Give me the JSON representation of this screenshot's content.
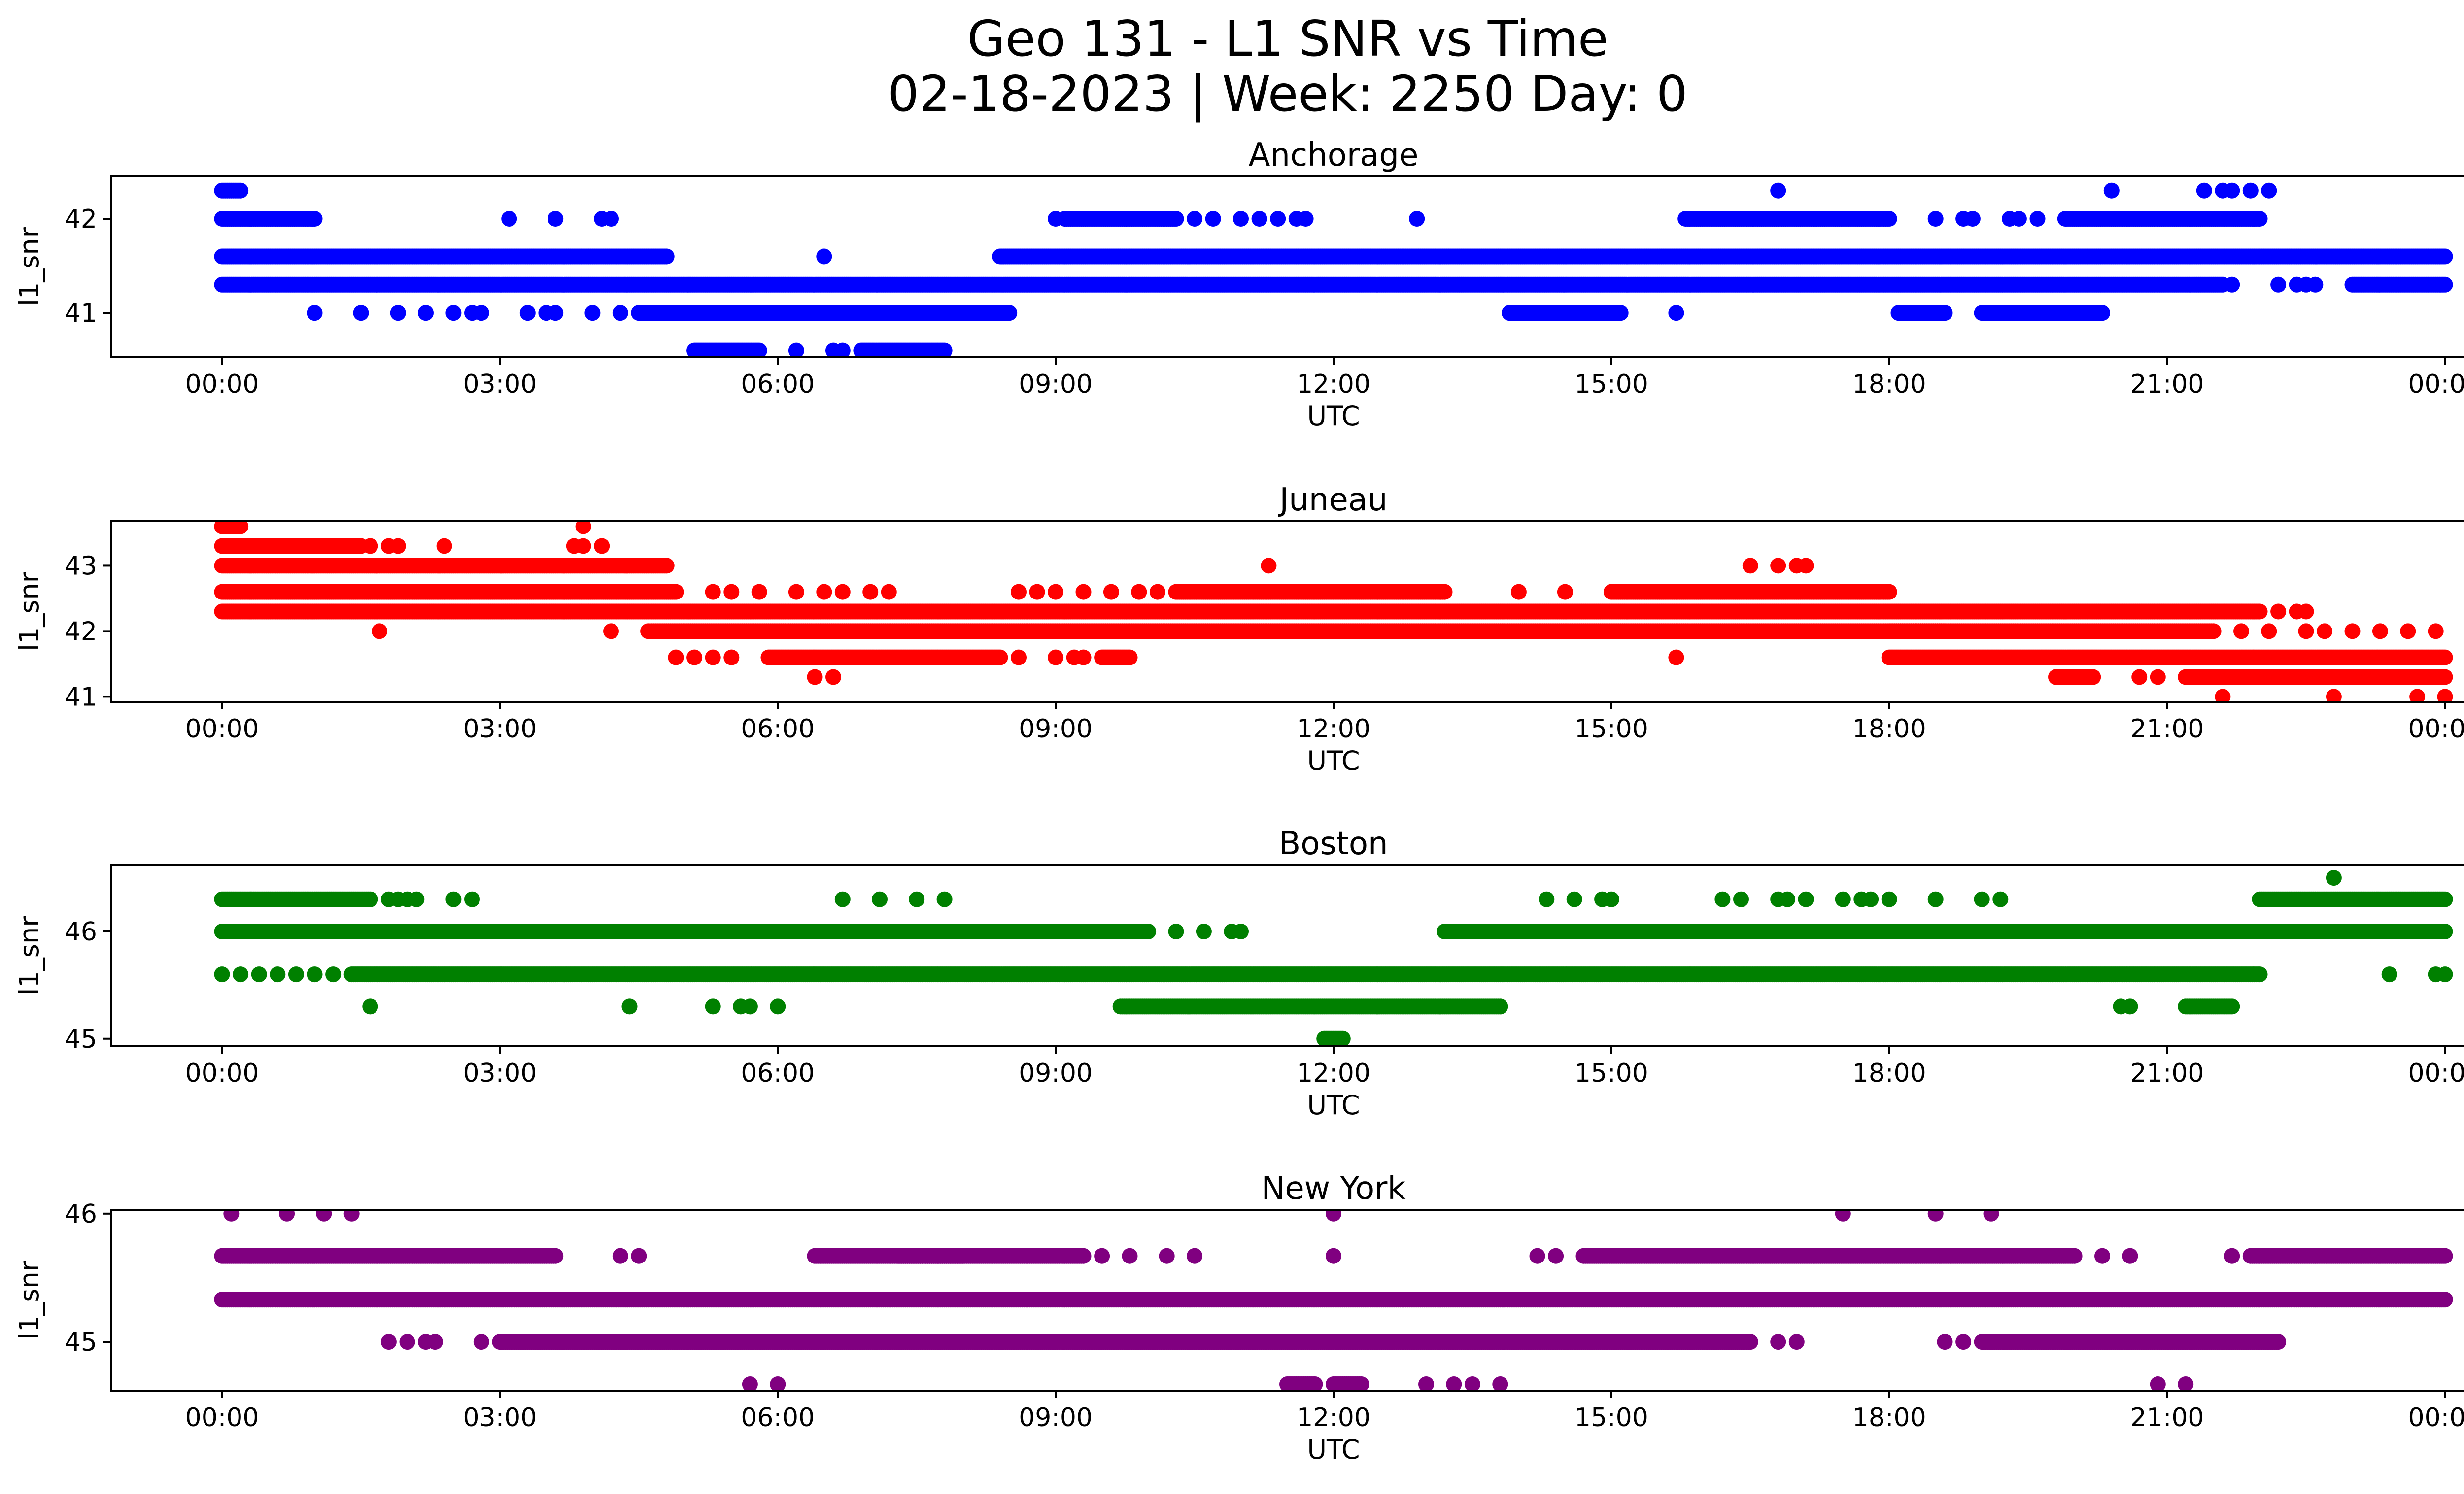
{
  "figure": {
    "title_line1": "Geo 131 - L1 SNR vs Time",
    "title_line2": "02-18-2023 | Week: 2250 Day: 0"
  },
  "chart_data": [
    {
      "type": "scatter",
      "title": "Anchorage",
      "xlabel": "UTC",
      "ylabel": "l1_snr",
      "color": "#0000ff",
      "x_ticks": [
        "00:00",
        "03:00",
        "06:00",
        "09:00",
        "12:00",
        "15:00",
        "18:00",
        "21:00",
        "00:00"
      ],
      "x_range_hours": [
        -1.2,
        25.2
      ],
      "y_ticks": [
        41,
        42
      ],
      "ylim": [
        40.53,
        42.45
      ],
      "series": [
        {
          "y": 42.3,
          "segments": [
            [
              0.0,
              0.2
            ]
          ],
          "points": [
            16.8,
            20.4,
            21.4,
            21.6,
            21.7,
            21.9,
            22.1
          ]
        },
        {
          "y": 42.0,
          "segments": [
            [
              0.0,
              1.0
            ],
            [
              9.1,
              10.3
            ],
            [
              15.8,
              18.0
            ],
            [
              19.9,
              22.0
            ]
          ],
          "points": [
            3.1,
            3.6,
            4.1,
            4.2,
            9.0,
            10.5,
            10.7,
            11.0,
            11.2,
            11.4,
            11.6,
            11.7,
            12.9,
            18.5,
            18.8,
            18.9,
            19.3,
            19.4,
            19.6
          ]
        },
        {
          "y": 41.6,
          "segments": [
            [
              0.0,
              4.8
            ],
            [
              8.4,
              24.0
            ]
          ],
          "points": [
            6.5
          ]
        },
        {
          "y": 41.3,
          "segments": [
            [
              0.0,
              21.6
            ],
            [
              23.0,
              24.0
            ]
          ],
          "points": [
            21.7,
            22.2,
            22.4,
            22.5,
            22.6
          ]
        },
        {
          "y": 41.0,
          "segments": [
            [
              4.5,
              8.5
            ],
            [
              13.9,
              15.1
            ],
            [
              18.1,
              18.6
            ],
            [
              19.0,
              20.3
            ]
          ],
          "points": [
            1.0,
            1.5,
            1.9,
            2.2,
            2.5,
            2.7,
            2.8,
            3.3,
            3.5,
            3.6,
            4.0,
            4.3,
            15.7
          ]
        },
        {
          "y": 40.6,
          "segments": [
            [
              5.1,
              5.8
            ],
            [
              6.9,
              7.8
            ]
          ],
          "points": [
            6.2,
            6.6,
            6.7
          ]
        }
      ]
    },
    {
      "type": "scatter",
      "title": "Juneau",
      "xlabel": "UTC",
      "ylabel": "l1_snr",
      "color": "#ff0000",
      "x_ticks": [
        "00:00",
        "03:00",
        "06:00",
        "09:00",
        "12:00",
        "15:00",
        "18:00",
        "21:00",
        "00:00"
      ],
      "x_range_hours": [
        -1.2,
        25.2
      ],
      "y_ticks": [
        41,
        42,
        43
      ],
      "ylim": [
        40.92,
        43.68
      ],
      "series": [
        {
          "y": 43.6,
          "segments": [
            [
              0.0,
              0.2
            ]
          ],
          "points": [
            3.9
          ]
        },
        {
          "y": 43.3,
          "segments": [
            [
              0.0,
              1.5
            ]
          ],
          "points": [
            1.6,
            1.8,
            1.9,
            2.4,
            3.8,
            3.9,
            4.1
          ]
        },
        {
          "y": 43.0,
          "segments": [
            [
              0.0,
              4.8
            ]
          ],
          "points": [
            11.3,
            16.5,
            16.8,
            17.0,
            17.1
          ]
        },
        {
          "y": 42.6,
          "segments": [
            [
              0.0,
              4.9
            ],
            [
              10.3,
              13.2
            ],
            [
              15.0,
              18.0
            ]
          ],
          "points": [
            5.3,
            5.5,
            5.8,
            6.2,
            6.5,
            6.7,
            7.0,
            7.2,
            8.6,
            8.8,
            9.0,
            9.3,
            9.6,
            9.9,
            10.1,
            14.0,
            14.5
          ]
        },
        {
          "y": 42.3,
          "segments": [
            [
              0.0,
              22.0
            ]
          ],
          "points": [
            22.2,
            22.4,
            22.5
          ]
        },
        {
          "y": 42.0,
          "segments": [
            [
              4.6,
              18.6
            ],
            [
              18.0,
              21.5
            ]
          ],
          "points": [
            1.7,
            4.2,
            21.8,
            22.1,
            22.5,
            22.7,
            23.0,
            23.3,
            23.6,
            23.9
          ]
        },
        {
          "y": 41.6,
          "segments": [
            [
              18.0,
              24.0
            ]
          ],
          "points": [
            4.9,
            5.1,
            5.3,
            5.5,
            15.7
          ]
        },
        {
          "y": 41.6,
          "segments": [
            [
              5.9,
              8.4
            ],
            [
              9.5,
              9.8
            ]
          ],
          "points": [
            8.6,
            9.0,
            9.2,
            9.3
          ]
        },
        {
          "y": 41.3,
          "segments": [
            [
              19.8,
              20.2
            ],
            [
              21.2,
              24.0
            ]
          ],
          "points": [
            6.4,
            6.6,
            20.7,
            20.9
          ]
        },
        {
          "y": 41.0,
          "segments": [],
          "points": [
            21.6,
            22.8,
            23.7,
            24.0
          ]
        }
      ]
    },
    {
      "type": "scatter",
      "title": "Boston",
      "xlabel": "UTC",
      "ylabel": "l1_snr",
      "color": "#008000",
      "x_ticks": [
        "00:00",
        "03:00",
        "06:00",
        "09:00",
        "12:00",
        "15:00",
        "18:00",
        "21:00",
        "00:00"
      ],
      "x_range_hours": [
        -1.2,
        25.2
      ],
      "y_ticks": [
        45,
        46
      ],
      "ylim": [
        44.93,
        46.62
      ],
      "series": [
        {
          "y": 46.5,
          "segments": [],
          "points": [
            22.8
          ]
        },
        {
          "y": 46.3,
          "segments": [
            [
              0.0,
              1.6
            ],
            [
              22.0,
              24.0
            ]
          ],
          "points": [
            1.8,
            1.9,
            2.0,
            2.1,
            2.5,
            2.7,
            6.7,
            7.1,
            7.5,
            7.8,
            14.3,
            14.6,
            14.9,
            15.0,
            16.2,
            16.4,
            16.8,
            17.1,
            17.5,
            18.0,
            18.5,
            19.0,
            19.2,
            16.9,
            17.7,
            17.8
          ]
        },
        {
          "y": 46.0,
          "segments": [
            [
              0.0,
              10.0
            ],
            [
              13.2,
              24.0
            ]
          ],
          "points": [
            10.3,
            10.6,
            10.9,
            11.0
          ]
        },
        {
          "y": 45.6,
          "segments": [
            [
              1.4,
              22.0
            ]
          ],
          "points": [
            0.0,
            0.2,
            0.4,
            0.6,
            0.8,
            1.0,
            1.2,
            23.4,
            23.9,
            24.0
          ]
        },
        {
          "y": 45.3,
          "segments": [
            [
              9.7,
              13.8
            ],
            [
              21.2,
              21.7
            ]
          ],
          "points": [
            1.6,
            4.4,
            5.3,
            5.6,
            5.7,
            6.0,
            20.5,
            20.6
          ]
        },
        {
          "y": 45.0,
          "segments": [
            [
              11.9,
              12.1
            ]
          ],
          "points": []
        }
      ]
    },
    {
      "type": "scatter",
      "title": "New York",
      "xlabel": "UTC",
      "ylabel": "l1_snr",
      "color": "#800080",
      "x_ticks": [
        "00:00",
        "03:00",
        "06:00",
        "09:00",
        "12:00",
        "15:00",
        "18:00",
        "21:00",
        "00:00"
      ],
      "x_range_hours": [
        -1.2,
        25.2
      ],
      "y_ticks": [
        45,
        46
      ],
      "ylim": [
        44.62,
        46.03
      ],
      "series": [
        {
          "y": 46.0,
          "segments": [],
          "points": [
            0.1,
            0.7,
            1.1,
            1.4,
            12.0,
            17.5,
            18.5,
            19.1
          ]
        },
        {
          "y": 45.67,
          "segments": [
            [
              0.0,
              3.6
            ],
            [
              6.4,
              8.0
            ],
            [
              7.3,
              9.3
            ],
            [
              14.7,
              20.0
            ],
            [
              21.9,
              24.0
            ]
          ],
          "points": [
            4.3,
            4.5,
            9.5,
            9.8,
            10.2,
            10.5,
            12.0,
            14.2,
            14.4,
            20.3,
            20.6,
            21.7
          ]
        },
        {
          "y": 45.33,
          "segments": [
            [
              0.0,
              24.0
            ]
          ],
          "points": []
        },
        {
          "y": 45.0,
          "segments": [
            [
              3.0,
              16.5
            ],
            [
              19.0,
              22.2
            ]
          ],
          "points": [
            1.8,
            2.0,
            2.2,
            2.3,
            2.8,
            16.8,
            17.0,
            18.6,
            18.8
          ]
        },
        {
          "y": 44.67,
          "segments": [
            [
              11.5,
              11.8
            ],
            [
              12.0,
              12.3
            ]
          ],
          "points": [
            5.7,
            6.0,
            13.0,
            13.3,
            13.5,
            13.8,
            20.9,
            21.2
          ]
        }
      ]
    }
  ]
}
